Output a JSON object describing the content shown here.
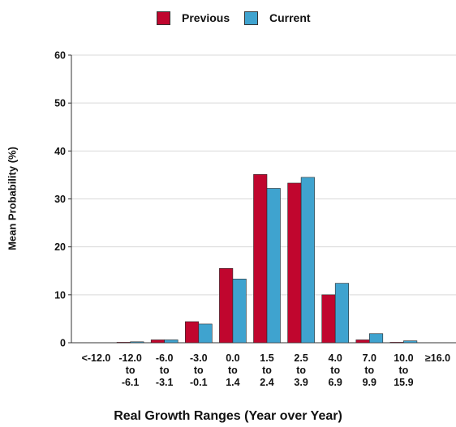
{
  "chart_data": {
    "type": "bar",
    "title": "",
    "xlabel": "Real Growth Ranges (Year over Year)",
    "ylabel": "Mean Probability (%)",
    "ylim": [
      0,
      60
    ],
    "yticks": [
      0,
      10,
      20,
      30,
      40,
      50,
      60
    ],
    "grid": "horizontal",
    "legend_position": "top",
    "categories": [
      [
        "<-12.0"
      ],
      [
        "-12.0",
        "to",
        "-6.1"
      ],
      [
        "-6.0",
        "to",
        "-3.1"
      ],
      [
        "-3.0",
        "to",
        "-0.1"
      ],
      [
        "0.0",
        "to",
        "1.4"
      ],
      [
        "1.5",
        "to",
        "2.4"
      ],
      [
        "2.5",
        "to",
        "3.9"
      ],
      [
        "4.0",
        "to",
        "6.9"
      ],
      [
        "7.0",
        "to",
        "9.9"
      ],
      [
        "10.0",
        "to",
        "15.9"
      ],
      [
        "≥16.0"
      ]
    ],
    "series": [
      {
        "name": "Previous",
        "color": "#c0062e",
        "values": [
          0,
          0.1,
          0.6,
          4.4,
          15.5,
          35.1,
          33.3,
          10.0,
          0.6,
          0.1,
          0
        ]
      },
      {
        "name": "Current",
        "color": "#3fa3cf",
        "values": [
          0,
          0.2,
          0.6,
          3.9,
          13.3,
          32.2,
          34.5,
          12.4,
          1.9,
          0.4,
          0
        ]
      }
    ]
  }
}
